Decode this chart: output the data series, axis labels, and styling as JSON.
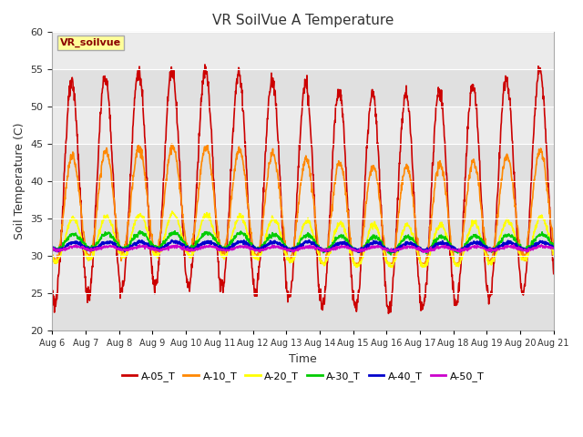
{
  "title": "VR SoilVue A Temperature",
  "xlabel": "Time",
  "ylabel": "Soil Temperature (C)",
  "ylim": [
    20,
    60
  ],
  "yticks": [
    20,
    25,
    30,
    35,
    40,
    45,
    50,
    55,
    60
  ],
  "plot_bg_color": "#ebebeb",
  "outer_bg_color": "#ffffff",
  "annotation_text": "VR_soilvue",
  "annotation_color": "#8B0000",
  "annotation_bg": "#ffff99",
  "legend_entries": [
    "A-05_T",
    "A-10_T",
    "A-20_T",
    "A-30_T",
    "A-40_T",
    "A-50_T"
  ],
  "line_colors": [
    "#cc0000",
    "#ff8800",
    "#ffff00",
    "#00cc00",
    "#0000cc",
    "#cc00cc"
  ],
  "x_tick_labels": [
    "Aug 6",
    "Aug 7",
    "Aug 8",
    "Aug 9",
    "Aug 10",
    "Aug 11",
    "Aug 12",
    "Aug 13",
    "Aug 14",
    "Aug 15",
    "Aug 16",
    "Aug 17",
    "Aug 18",
    "Aug 19",
    "Aug 20",
    "Aug 21"
  ],
  "num_days": 15,
  "samples_per_day": 96,
  "zebra_colors": [
    "#e0e0e0",
    "#ebebeb"
  ],
  "zebra_step": 5
}
